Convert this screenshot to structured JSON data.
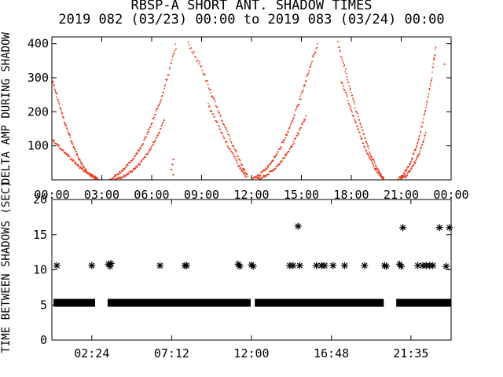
{
  "title_line1": "RBSP-A SHORT ANT. SHADOW TIMES",
  "title_line2": "2019 082 (03/23) 00:00 to 2019 083 (03/24) 00:00",
  "colors": {
    "trace": "#e8391b",
    "axes": "#000000",
    "background": "#ffffff"
  },
  "chart_data": [
    {
      "type": "scatter",
      "ylabel": "DELTA AMP DURING SHADOW",
      "xlim": [
        0,
        24
      ],
      "ylim": [
        0,
        420
      ],
      "x_ticks": [
        "00:00",
        "03:00",
        "06:00",
        "09:00",
        "12:00",
        "15:00",
        "18:00",
        "21:00",
        "00:00"
      ],
      "y_ticks": [
        "100",
        "200",
        "300",
        "400"
      ],
      "grid": false,
      "series": [
        {
          "curves": [
            {
              "x": [
                0.0,
                0.4,
                0.8,
                1.2,
                1.6,
                2.0,
                2.4,
                2.8
              ],
              "y": [
                300,
                230,
                165,
                110,
                65,
                32,
                12,
                2
              ]
            },
            {
              "x": [
                0.0,
                0.5,
                1.0,
                1.5,
                2.0,
                2.5,
                2.8
              ],
              "y": [
                120,
                95,
                70,
                45,
                25,
                8,
                0
              ]
            },
            {
              "x": [
                3.5,
                4.0,
                4.5,
                5.0,
                5.5,
                6.0,
                6.5,
                7.0,
                7.5
              ],
              "y": [
                2,
                18,
                40,
                70,
                110,
                165,
                230,
                310,
                400
              ]
            },
            {
              "x": [
                3.8,
                4.3,
                4.8,
                5.3,
                5.8,
                6.3,
                6.8
              ],
              "y": [
                0,
                10,
                25,
                48,
                80,
                125,
                180
              ]
            },
            {
              "x": [
                8.2,
                9.0,
                9.6,
                10.2,
                10.8,
                11.4,
                11.8
              ],
              "y": [
                400,
                330,
                250,
                180,
                110,
                45,
                8
              ]
            },
            {
              "x": [
                9.4,
                10.0,
                10.6,
                11.2,
                11.7
              ],
              "y": [
                220,
                160,
                100,
                45,
                6
              ]
            },
            {
              "x": [
                12.0,
                12.5,
                13.0,
                13.5,
                14.0,
                14.5,
                15.0,
                15.5,
                16.0
              ],
              "y": [
                0,
                15,
                40,
                75,
                120,
                180,
                250,
                330,
                400
              ]
            },
            {
              "x": [
                12.3,
                12.8,
                13.3,
                13.8,
                14.3,
                14.8,
                15.3
              ],
              "y": [
                0,
                10,
                28,
                55,
                90,
                135,
                190
              ]
            },
            {
              "x": [
                17.2,
                17.7,
                18.2,
                18.7,
                19.2,
                19.7,
                20.0
              ],
              "y": [
                400,
                310,
                220,
                140,
                70,
                20,
                0
              ]
            },
            {
              "x": [
                17.4,
                17.9,
                18.4,
                18.9,
                19.4,
                19.9
              ],
              "y": [
                290,
                220,
                150,
                85,
                35,
                5
              ]
            },
            {
              "x": [
                20.8,
                21.2,
                21.6,
                22.0,
                22.4,
                22.8,
                23.1
              ],
              "y": [
                0,
                20,
                55,
                110,
                190,
                290,
                400
              ]
            },
            {
              "x": [
                20.9,
                21.3,
                21.7,
                22.1,
                22.5
              ],
              "y": [
                0,
                12,
                40,
                80,
                140
              ]
            }
          ],
          "isolated": [
            {
              "x": 7.2,
              "y": 30
            },
            {
              "x": 7.25,
              "y": 45
            },
            {
              "x": 7.3,
              "y": 15
            },
            {
              "x": 7.3,
              "y": 60
            },
            {
              "x": 23.6,
              "y": 340
            }
          ]
        }
      ]
    },
    {
      "type": "scatter",
      "ylabel": "TIME BETWEEN SHADOWS (SEC)",
      "xlim": [
        0,
        24
      ],
      "ylim": [
        0,
        20
      ],
      "x_ticks": [
        "02:24",
        "07:12",
        "12:00",
        "16:48",
        "21:35"
      ],
      "x_tick_positions": [
        2.4,
        7.2,
        12.0,
        16.8,
        21.5833
      ],
      "y_ticks": [
        "0",
        "5",
        "10",
        "15",
        "20"
      ],
      "grid": false,
      "series": [
        {
          "band_value": 5.3,
          "band_segments": [
            [
              0.1,
              2.6
            ],
            [
              3.35,
              11.95
            ],
            [
              12.2,
              19.95
            ],
            [
              20.7,
              24.0
            ]
          ],
          "points": [
            {
              "x": 0.3,
              "y": 10.6
            },
            {
              "x": 2.4,
              "y": 10.6
            },
            {
              "x": 3.4,
              "y": 10.8
            },
            {
              "x": 3.5,
              "y": 10.5
            },
            {
              "x": 3.55,
              "y": 10.9
            },
            {
              "x": 6.5,
              "y": 10.6
            },
            {
              "x": 8.0,
              "y": 10.6
            },
            {
              "x": 8.1,
              "y": 10.6
            },
            {
              "x": 11.2,
              "y": 10.8
            },
            {
              "x": 11.3,
              "y": 10.5
            },
            {
              "x": 12.0,
              "y": 10.7
            },
            {
              "x": 12.1,
              "y": 10.5
            },
            {
              "x": 14.3,
              "y": 10.6
            },
            {
              "x": 14.5,
              "y": 10.6
            },
            {
              "x": 14.8,
              "y": 16.2
            },
            {
              "x": 14.9,
              "y": 10.6
            },
            {
              "x": 15.9,
              "y": 10.6
            },
            {
              "x": 16.2,
              "y": 10.6
            },
            {
              "x": 16.4,
              "y": 10.6
            },
            {
              "x": 16.9,
              "y": 10.6
            },
            {
              "x": 17.6,
              "y": 10.6
            },
            {
              "x": 18.8,
              "y": 10.6
            },
            {
              "x": 20.0,
              "y": 10.6
            },
            {
              "x": 20.1,
              "y": 10.5
            },
            {
              "x": 20.9,
              "y": 10.8
            },
            {
              "x": 21.0,
              "y": 10.5
            },
            {
              "x": 21.1,
              "y": 16.0
            },
            {
              "x": 22.0,
              "y": 10.6
            },
            {
              "x": 22.3,
              "y": 10.6
            },
            {
              "x": 22.5,
              "y": 10.6
            },
            {
              "x": 22.7,
              "y": 10.6
            },
            {
              "x": 22.9,
              "y": 10.6
            },
            {
              "x": 23.3,
              "y": 16.0
            },
            {
              "x": 23.7,
              "y": 10.5
            },
            {
              "x": 23.9,
              "y": 16.0
            }
          ]
        }
      ]
    }
  ]
}
